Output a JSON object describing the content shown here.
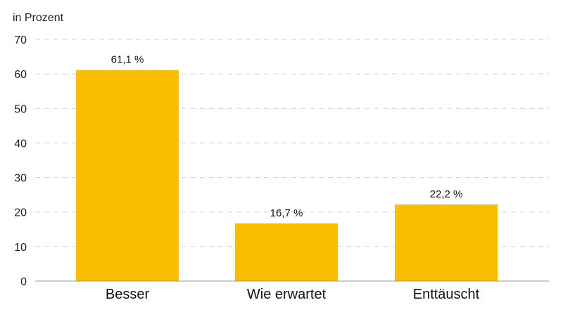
{
  "chart_data": {
    "type": "bar",
    "title": "",
    "ylabel": "in Prozent",
    "xlabel": "",
    "categories": [
      "Besser",
      "Wie erwartet",
      "Enttäuscht"
    ],
    "values": [
      61.1,
      16.7,
      22.2
    ],
    "value_labels": [
      "61,1 %",
      "16,7 %",
      "22,2 %"
    ],
    "ylim": [
      0,
      70
    ],
    "yticks": [
      0,
      10,
      20,
      30,
      40,
      50,
      60,
      70
    ],
    "grid": true,
    "grid_style": "dashed",
    "bar_color": "#F9BE00"
  }
}
